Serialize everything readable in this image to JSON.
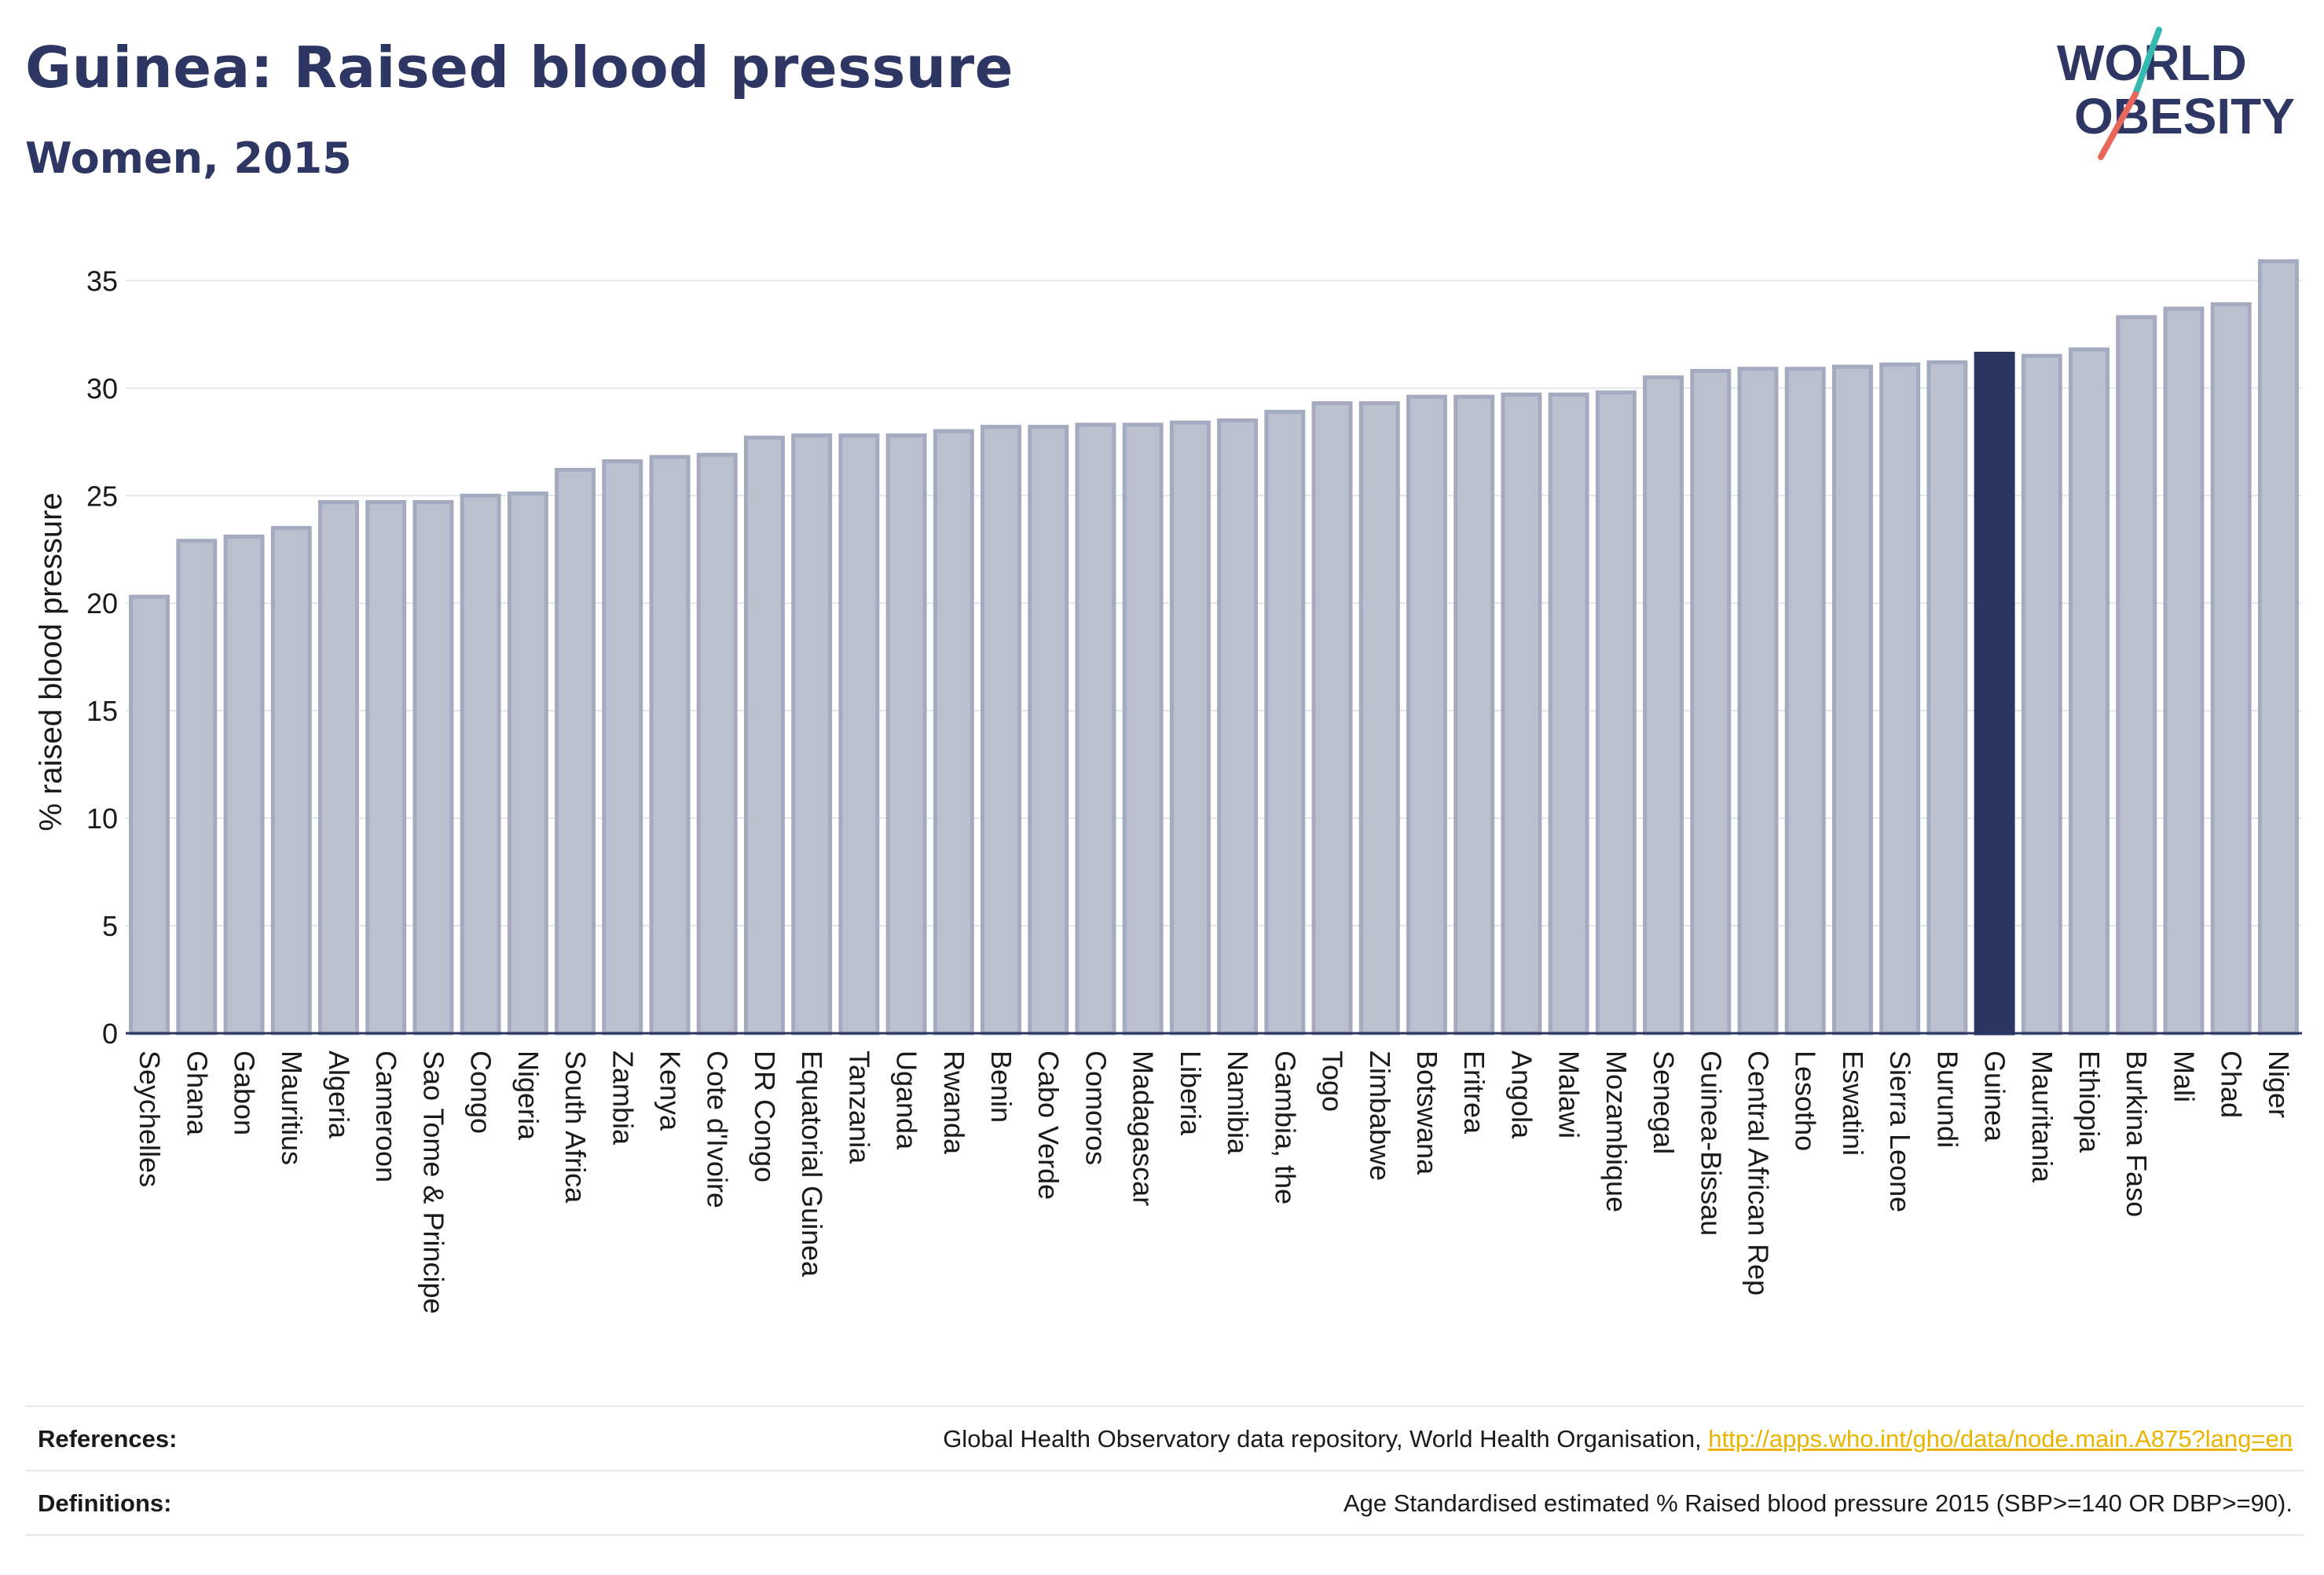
{
  "header": {
    "title": "Guinea: Raised blood pressure",
    "subtitle": "Women, 2015",
    "logo_line1": "WORLD",
    "logo_line2": "OBESITY"
  },
  "colors": {
    "bar_fill": "#bcc0ce",
    "bar_stroke": "#a4aac0",
    "highlight": "#2b3561",
    "grid": "#e3e5ea",
    "axis": "#2b3561",
    "link": "#e8b400",
    "logo_teal": "#35b8b0",
    "logo_coral": "#e8665a"
  },
  "chart_data": {
    "type": "bar",
    "ylabel": "% raised blood pressure",
    "ylim": [
      0,
      36
    ],
    "yticks": [
      0,
      5,
      10,
      15,
      20,
      25,
      30,
      35
    ],
    "grid": true,
    "highlight": "Guinea",
    "categories": [
      "Seychelles",
      "Ghana",
      "Gabon",
      "Mauritius",
      "Algeria",
      "Cameroon",
      "Sao Tome & Principe",
      "Congo",
      "Nigeria",
      "South Africa",
      "Zambia",
      "Kenya",
      "Cote d'Ivoire",
      "DR Congo",
      "Equatorial Guinea",
      "Tanzania",
      "Uganda",
      "Rwanda",
      "Benin",
      "Cabo Verde",
      "Comoros",
      "Madagascar",
      "Liberia",
      "Namibia",
      "Gambia, the",
      "Togo",
      "Zimbabwe",
      "Botswana",
      "Eritrea",
      "Angola",
      "Malawi",
      "Mozambique",
      "Senegal",
      "Guinea-Bissau",
      "Central African Rep",
      "Lesotho",
      "Eswatini",
      "Sierra Leone",
      "Burundi",
      "Guinea",
      "Mauritania",
      "Ethiopia",
      "Burkina Faso",
      "Mali",
      "Chad",
      "Niger"
    ],
    "values": [
      20.3,
      22.9,
      23.1,
      23.5,
      24.7,
      24.7,
      24.7,
      25.0,
      25.1,
      26.2,
      26.6,
      26.8,
      26.9,
      27.7,
      27.8,
      27.8,
      27.8,
      28.0,
      28.2,
      28.2,
      28.3,
      28.3,
      28.4,
      28.5,
      28.9,
      29.3,
      29.3,
      29.6,
      29.6,
      29.7,
      29.7,
      29.8,
      30.5,
      30.8,
      30.9,
      30.9,
      31.0,
      31.1,
      31.2,
      31.6,
      31.5,
      31.8,
      33.3,
      33.7,
      33.9,
      35.9
    ]
  },
  "footer": {
    "references_label": "References:",
    "references_text": "Global Health Observatory data repository, World Health Organisation, ",
    "references_link": "http://apps.who.int/gho/data/node.main.A875?lang=en",
    "definitions_label": "Definitions:",
    "definitions_text": "Age Standardised estimated % Raised blood pressure 2015 (SBP>=140 OR DBP>=90)."
  }
}
